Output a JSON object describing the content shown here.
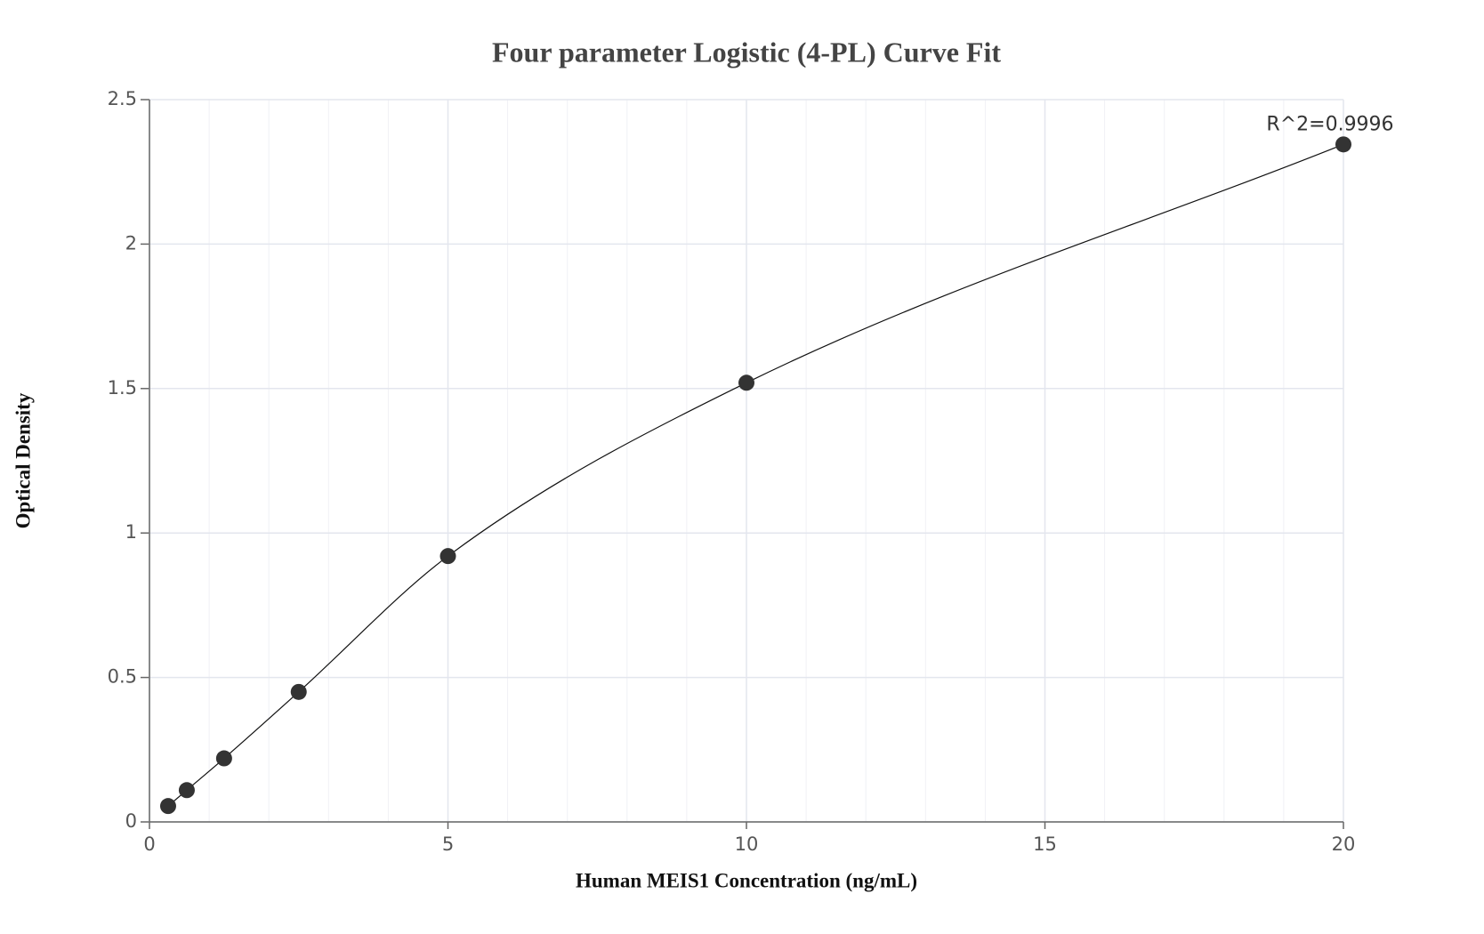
{
  "chart_data": {
    "type": "scatter",
    "title": "Four parameter Logistic (4-PL) Curve Fit",
    "x_label": "Human MEIS1 Concentration (ng/mL)",
    "y_label": "Optical Density",
    "annotation": "R^2=0.9996",
    "x": [
      0.3125,
      0.625,
      1.25,
      2.5,
      5,
      10,
      20
    ],
    "values": [
      0.055,
      0.11,
      0.22,
      0.45,
      0.92,
      1.52,
      2.345
    ],
    "color": "#333333",
    "fit_line": true,
    "xlim": [
      0,
      20
    ],
    "xticks": [
      0,
      5,
      10,
      15,
      20
    ],
    "ylim": [
      0,
      2.5
    ],
    "yticks": [
      0,
      0.5,
      1,
      1.5,
      2,
      2.5
    ],
    "grid": true
  }
}
